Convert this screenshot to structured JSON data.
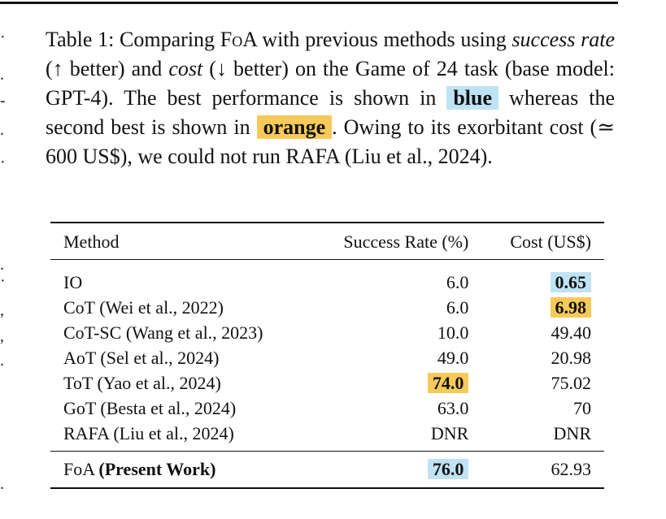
{
  "caption": {
    "label": "Table 1:",
    "intro_a": " Comparing F",
    "intro_sc": "o",
    "intro_b": "A with previous methods using",
    "metric1": "success rate",
    "metric1_note": " (↑ better) and ",
    "metric2": "cost",
    "metric2_note": " (↓ better) on the Game of 24 task (base model: GPT-4). The best performance is shown in ",
    "best_word": "blue",
    "middle": " whereas the second best is shown in ",
    "second_word": "orange",
    "tail": ". Owing to its exorbitant cost (≃ 600 US$), we could not run RAFA  (Liu et al., 2024)."
  },
  "table": {
    "headers": [
      "Method",
      "Success Rate (%)",
      "Cost (US$)"
    ],
    "rows": [
      {
        "method": "IO",
        "success": "6.0",
        "cost": "0.65"
      },
      {
        "method": "CoT (Wei et al., 2022)",
        "success": "6.0",
        "cost": "6.98"
      },
      {
        "method": "CoT-SC (Wang et al., 2023)",
        "success": "10.0",
        "cost": "49.40"
      },
      {
        "method": "AoT (Sel et al., 2024)",
        "success": "49.0",
        "cost": "20.98"
      },
      {
        "method": "ToT (Yao et al., 2024)",
        "success": "74.0",
        "cost": "75.02"
      },
      {
        "method": "GoT (Besta et al., 2024)",
        "success": "63.0",
        "cost": "70"
      },
      {
        "method": "RAFA (Liu et al., 2024)",
        "success": "DNR",
        "cost": "DNR"
      }
    ],
    "present_work": {
      "method_prefix": "FoA ",
      "method_bold": "(Present Work)",
      "success": "76.0",
      "cost": "62.93"
    }
  },
  "colors": {
    "best": "#bfe3f4",
    "second_best": "#f6ca5a"
  }
}
